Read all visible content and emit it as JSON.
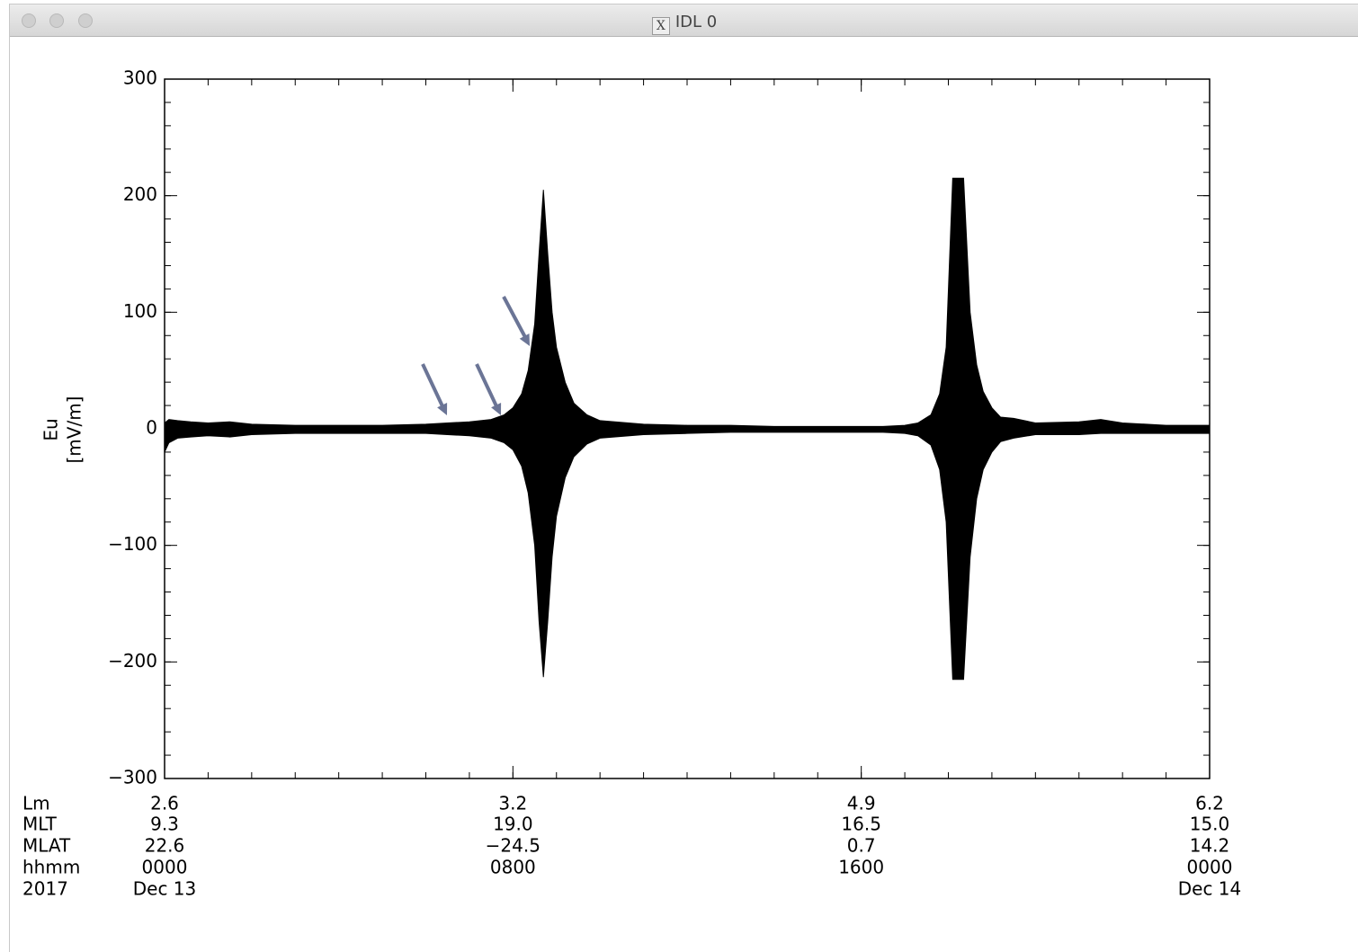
{
  "window": {
    "title": "IDL 0"
  },
  "chart_data": {
    "type": "envelope",
    "ylabel": "Eu",
    "yunits": "[mV/m]",
    "x": [
      0,
      0.1,
      0.3,
      0.6,
      1,
      1.5,
      2,
      3,
      4,
      5,
      6,
      6.5,
      7,
      7.5,
      7.8,
      8,
      8.2,
      8.35,
      8.5,
      8.6,
      8.7,
      8.8,
      8.9,
      9.0,
      9.2,
      9.4,
      9.7,
      10,
      11,
      12,
      13,
      14,
      15,
      16,
      16.5,
      17,
      17.3,
      17.6,
      17.8,
      17.95,
      18.1,
      18.35,
      18.5,
      18.65,
      18.8,
      19.0,
      19.2,
      19.5,
      20,
      21,
      21.5,
      22,
      23,
      24
    ],
    "series": [
      {
        "name": "upper",
        "color": "#000000",
        "values": [
          5,
          8,
          7,
          6,
          5,
          6,
          4,
          3,
          3,
          3,
          4,
          5,
          6,
          8,
          12,
          18,
          30,
          50,
          90,
          150,
          205,
          150,
          100,
          70,
          40,
          22,
          12,
          7,
          4,
          3,
          3,
          2,
          2,
          2,
          2,
          3,
          5,
          12,
          30,
          70,
          215,
          215,
          100,
          55,
          32,
          18,
          10,
          9,
          5,
          6,
          8,
          5,
          3,
          3
        ]
      },
      {
        "name": "lower",
        "color": "#000000",
        "values": [
          -20,
          -12,
          -8,
          -7,
          -6,
          -7,
          -5,
          -4,
          -4,
          -4,
          -4,
          -5,
          -6,
          -8,
          -12,
          -18,
          -32,
          -55,
          -100,
          -165,
          -213,
          -165,
          -110,
          -75,
          -42,
          -24,
          -13,
          -8,
          -5,
          -4,
          -3,
          -3,
          -3,
          -3,
          -3,
          -4,
          -6,
          -14,
          -35,
          -80,
          -215,
          -215,
          -110,
          -60,
          -35,
          -20,
          -11,
          -8,
          -5,
          -5,
          -4,
          -4,
          -4,
          -4
        ]
      }
    ],
    "xlim": [
      0,
      24
    ],
    "ylim": [
      -300,
      300
    ],
    "xticks": [
      {
        "value": 0,
        "label": "0000"
      },
      {
        "value": 8,
        "label": "0800"
      },
      {
        "value": 16,
        "label": "1600"
      },
      {
        "value": 24,
        "label": "0000"
      }
    ],
    "xtick_row_name": "hhmm",
    "xminor_step": 1,
    "yticks": [
      {
        "value": -300,
        "label": "−300"
      },
      {
        "value": -200,
        "label": "−200"
      },
      {
        "value": -100,
        "label": "−100"
      },
      0,
      100,
      200,
      300
    ],
    "yminor_step": 20,
    "extra_rows": [
      {
        "name": "Lm",
        "labels": [
          "2.6",
          "3.2",
          "4.9",
          "6.2"
        ]
      },
      {
        "name": "MLT",
        "labels": [
          "9.3",
          "19.0",
          "16.5",
          "15.0"
        ]
      },
      {
        "name": "MLAT",
        "labels": [
          "22.6",
          "−24.5",
          "0.7",
          "14.2"
        ]
      }
    ],
    "date_row": {
      "name": "2017",
      "labels": [
        "Dec 13",
        null,
        null,
        "Dec 14"
      ]
    }
  }
}
